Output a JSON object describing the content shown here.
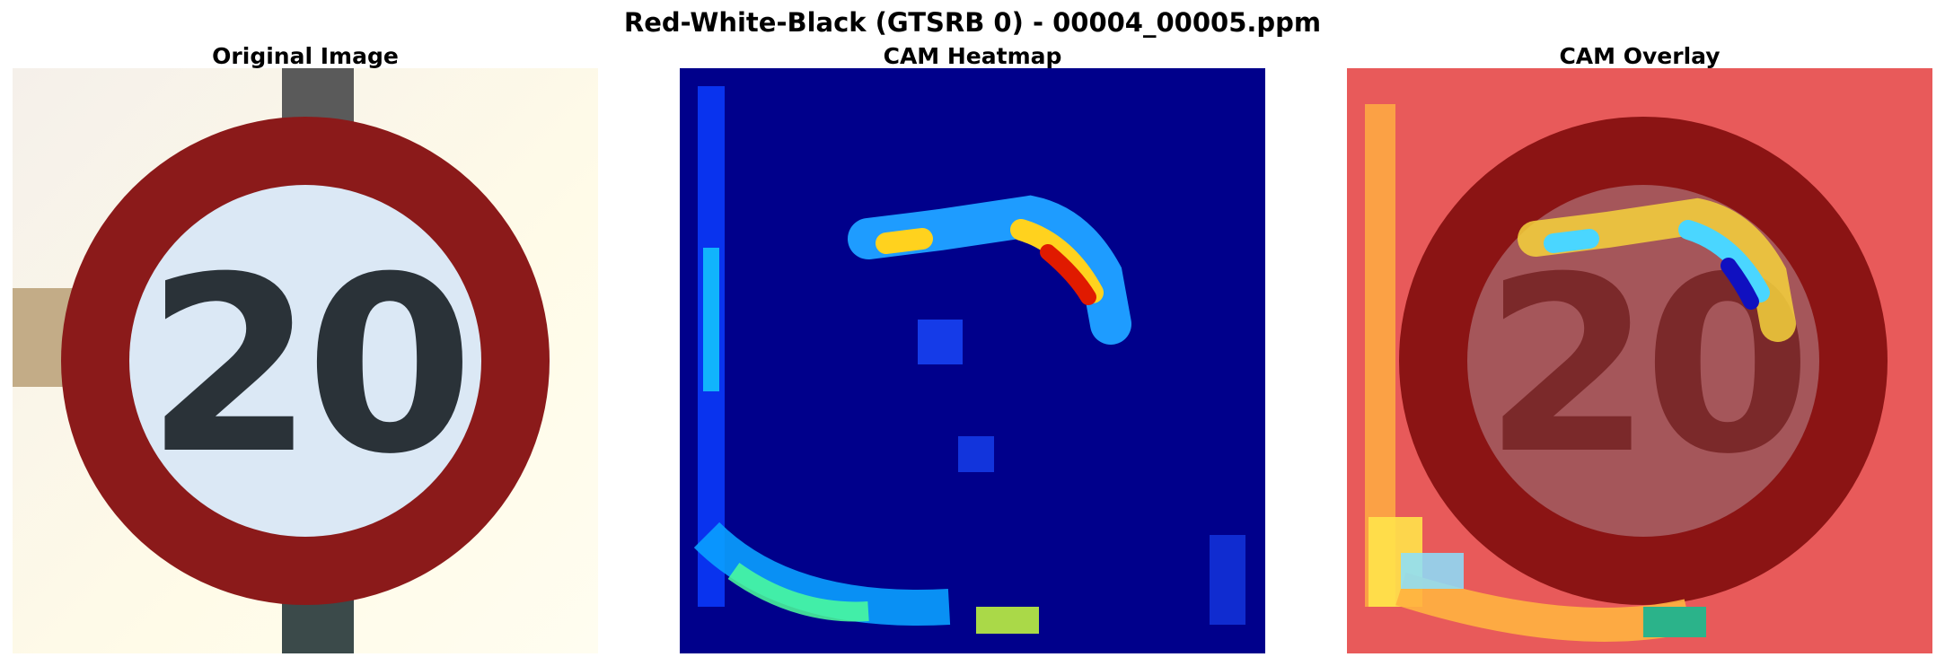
{
  "figure": {
    "title": "Red-White-Black (GTSRB 0) - 00004_00005.ppm"
  },
  "panels": [
    {
      "title": "Original Image",
      "content": "speed-limit sign showing \"20\""
    },
    {
      "title": "CAM Heatmap"
    },
    {
      "title": "CAM Overlay"
    }
  ],
  "sign": {
    "text": "20",
    "ring_color": "#8b1a1a",
    "face_color": "#dbe8f5",
    "background_color": "#fdfae6",
    "digit_color": "#2a3238"
  },
  "colormap": {
    "name": "jet",
    "low": "#00007f",
    "mid": "#00ffff",
    "high": "#7f0000"
  }
}
